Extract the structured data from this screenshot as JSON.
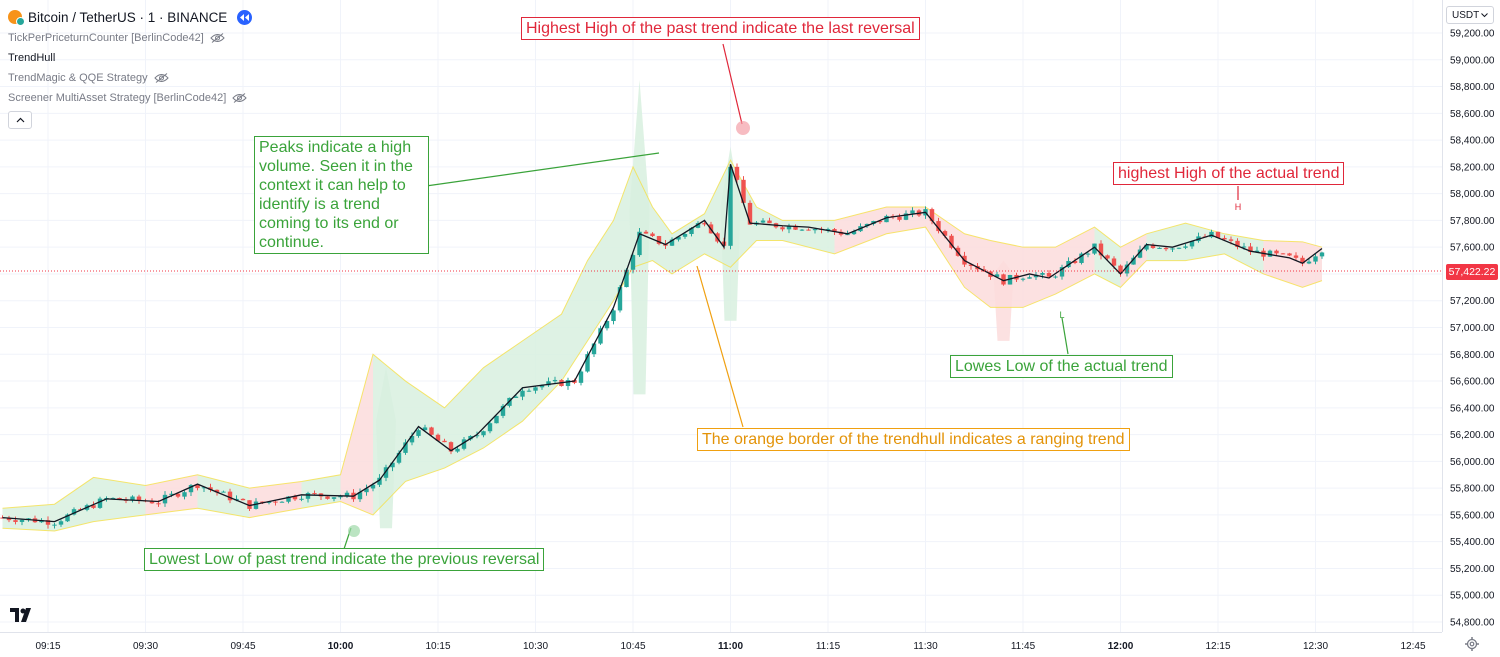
{
  "symbol": {
    "title": "Bitcoin / TetherUS · 1 · BINANCE"
  },
  "indicators": [
    {
      "label": "TickPerPriceturnCounter [BerlinCode42]",
      "hidden": true
    },
    {
      "label": "TrendHull",
      "hidden": false
    },
    {
      "label": "TrendMagic & QQE Strategy",
      "hidden": true
    },
    {
      "label": "Screener MultiAsset Strategy [BerlinCode42]",
      "hidden": true
    }
  ],
  "currency": "USDT",
  "last_price": "57,422.22",
  "icons": {
    "logo": "bitcoin-logo-icon",
    "replay": "replay-icon",
    "eye": "eye-off-icon",
    "collapse": "chevron-up-icon",
    "settings": "gear-icon",
    "dropdown": "chevron-down-icon",
    "brand": "tradingview-logo"
  },
  "colors": {
    "up": "#26a69a",
    "down": "#ef5350",
    "green_fill": "#d8f0df",
    "red_fill": "#fcdcdc",
    "range_border": "#f5e04a",
    "annotation_red": "#e0273a",
    "annotation_green": "#3aa33a",
    "annotation_orange": "#f0a010",
    "price_line": "#f23645"
  },
  "annotations": {
    "highest_high_past": "Highest High of the past trend indicate the last reversal",
    "peaks": "Peaks indicate a high volume. Seen it in the context it can help to identify is a trend coming to its end or continue.",
    "highest_high_actual": "highest High of the actual trend",
    "lowes_low_actual": "Lowes Low of the actual trend",
    "orange_border": "The orange border of the trendhull indicates a ranging trend",
    "lowest_low_past": "Lowest Low of past trend indicate the previous reversal",
    "marker_h": "H",
    "marker_l": "L"
  },
  "chart_data": {
    "type": "candlestick",
    "symbol": "BTC/USDT",
    "interval": "1",
    "y_axis_ticks": [
      59200,
      59000,
      58800,
      58600,
      58400,
      58200,
      58000,
      57800,
      57600,
      57400,
      57200,
      57000,
      56800,
      56600,
      56400,
      56200,
      56000,
      55800,
      55600,
      55400,
      55200,
      55000,
      54800
    ],
    "y_axis_labels": [
      "59,200.00",
      "59,000.00",
      "58,800.00",
      "58,600.00",
      "58,400.00",
      "58,200.00",
      "58,000.00",
      "57,800.00",
      "57,600.00",
      "57,200.00",
      "57,000.00",
      "56,800.00",
      "56,600.00",
      "56,400.00",
      "56,200.00",
      "56,000.00",
      "55,800.00",
      "55,600.00",
      "55,400.00",
      "55,200.00",
      "55,000.00",
      "54,800.00"
    ],
    "ylim": [
      54700,
      59300
    ],
    "x_axis_labels": [
      "09:15",
      "09:30",
      "09:45",
      "10:00",
      "10:15",
      "10:30",
      "10:45",
      "11:00",
      "11:15",
      "11:30",
      "11:45",
      "12:00",
      "12:15",
      "12:30",
      "12:45"
    ],
    "x_axis_bold": [
      "10:00",
      "11:00",
      "12:00"
    ],
    "x_axis_minutes": [
      555,
      570,
      585,
      600,
      615,
      630,
      645,
      660,
      675,
      690,
      705,
      720,
      735,
      750,
      765
    ],
    "last_price": 57422.22,
    "trend_line": [
      [
        548,
        55580
      ],
      [
        556,
        55550
      ],
      [
        564,
        55720
      ],
      [
        572,
        55700
      ],
      [
        578,
        55830
      ],
      [
        586,
        55670
      ],
      [
        594,
        55750
      ],
      [
        602,
        55740
      ],
      [
        606,
        55860
      ],
      [
        612,
        56260
      ],
      [
        617,
        56080
      ],
      [
        621,
        56200
      ],
      [
        628,
        56550
      ],
      [
        636,
        56600
      ],
      [
        642,
        57150
      ],
      [
        646,
        57700
      ],
      [
        650,
        57620
      ],
      [
        656,
        57800
      ],
      [
        659,
        57600
      ],
      [
        660,
        58220
      ],
      [
        663,
        57780
      ],
      [
        668,
        57760
      ],
      [
        672,
        57750
      ],
      [
        678,
        57700
      ],
      [
        684,
        57820
      ],
      [
        690,
        57860
      ],
      [
        696,
        57500
      ],
      [
        702,
        57350
      ],
      [
        706,
        57400
      ],
      [
        709,
        57370
      ],
      [
        716,
        57600
      ],
      [
        720,
        57400
      ],
      [
        724,
        57620
      ],
      [
        728,
        57600
      ],
      [
        734,
        57690
      ],
      [
        740,
        57570
      ],
      [
        746,
        57520
      ],
      [
        748,
        57480
      ],
      [
        751,
        57590
      ]
    ],
    "hull_upper": [
      [
        548,
        55650
      ],
      [
        556,
        55680
      ],
      [
        562,
        55880
      ],
      [
        570,
        55820
      ],
      [
        578,
        55900
      ],
      [
        586,
        55800
      ],
      [
        594,
        55850
      ],
      [
        600,
        55900
      ],
      [
        605,
        56800
      ],
      [
        610,
        56600
      ],
      [
        616,
        56400
      ],
      [
        622,
        56700
      ],
      [
        628,
        56900
      ],
      [
        634,
        57100
      ],
      [
        638,
        57500
      ],
      [
        642,
        57800
      ],
      [
        645,
        58200
      ],
      [
        648,
        57900
      ],
      [
        651,
        57700
      ],
      [
        656,
        57850
      ],
      [
        660,
        58250
      ],
      [
        664,
        57900
      ],
      [
        668,
        57800
      ],
      [
        676,
        57800
      ],
      [
        684,
        57900
      ],
      [
        690,
        57900
      ],
      [
        696,
        57700
      ],
      [
        700,
        57650
      ],
      [
        705,
        57600
      ],
      [
        710,
        57600
      ],
      [
        716,
        57750
      ],
      [
        720,
        57600
      ],
      [
        724,
        57700
      ],
      [
        730,
        57780
      ],
      [
        736,
        57700
      ],
      [
        742,
        57650
      ],
      [
        748,
        57640
      ],
      [
        751,
        57600
      ]
    ],
    "hull_lower": [
      [
        548,
        55500
      ],
      [
        556,
        55480
      ],
      [
        562,
        55550
      ],
      [
        570,
        55600
      ],
      [
        578,
        55650
      ],
      [
        586,
        55580
      ],
      [
        594,
        55650
      ],
      [
        600,
        55700
      ],
      [
        605,
        55600
      ],
      [
        610,
        55850
      ],
      [
        616,
        55950
      ],
      [
        622,
        56100
      ],
      [
        628,
        56300
      ],
      [
        634,
        56600
      ],
      [
        638,
        56900
      ],
      [
        642,
        57200
      ],
      [
        645,
        57450
      ],
      [
        648,
        57500
      ],
      [
        651,
        57400
      ],
      [
        656,
        57550
      ],
      [
        660,
        57450
      ],
      [
        664,
        57650
      ],
      [
        668,
        57650
      ],
      [
        676,
        57550
      ],
      [
        684,
        57700
      ],
      [
        690,
        57750
      ],
      [
        696,
        57300
      ],
      [
        700,
        57150
      ],
      [
        705,
        57150
      ],
      [
        710,
        57250
      ],
      [
        716,
        57400
      ],
      [
        720,
        57300
      ],
      [
        724,
        57500
      ],
      [
        730,
        57500
      ],
      [
        736,
        57550
      ],
      [
        742,
        57400
      ],
      [
        748,
        57300
      ],
      [
        751,
        57350
      ]
    ],
    "trend_direction": [
      "up",
      "up",
      "up",
      "down",
      "up",
      "down",
      "up",
      "down",
      "up",
      "up",
      "up",
      "up",
      "up",
      "up",
      "up",
      "up",
      "up",
      "up",
      "up",
      "up",
      "up",
      "up",
      "up",
      "down",
      "down",
      "down",
      "down",
      "down",
      "down",
      "down",
      "up",
      "down",
      "up",
      "up",
      "up",
      "down",
      "down",
      "down",
      "down"
    ],
    "spikes": [
      {
        "minute": 646,
        "high": 58850,
        "low": 56500,
        "color": "green"
      },
      {
        "minute": 660,
        "high": 58350,
        "low": 57050,
        "color": "green"
      },
      {
        "minute": 607,
        "high": 56700,
        "low": 55500,
        "color": "green"
      },
      {
        "minute": 702,
        "high": 57500,
        "low": 56900,
        "color": "red"
      }
    ]
  }
}
